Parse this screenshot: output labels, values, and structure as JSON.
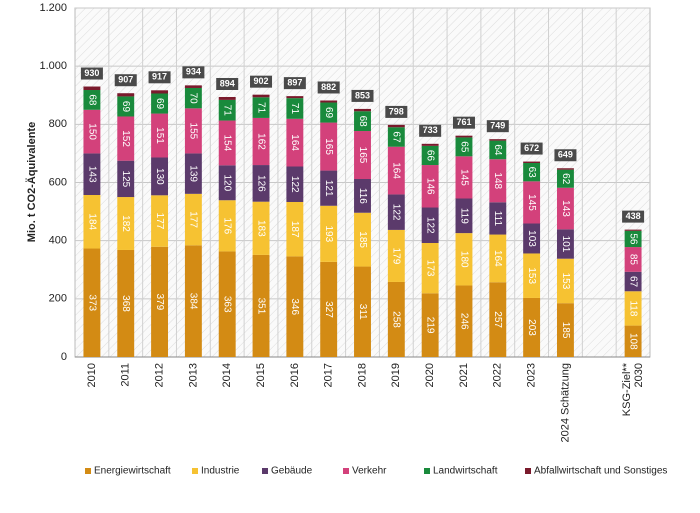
{
  "chart_data": {
    "type": "stacked-bar",
    "y_axis_label": "Mio. t CO2-Äquivalente",
    "categories": [
      "2010",
      "2011",
      "2012",
      "2013",
      "2014",
      "2015",
      "2016",
      "2017",
      "2018",
      "2019",
      "2020",
      "2021",
      "2022",
      "2023",
      "2024 Schätzung",
      null,
      "KSG-Ziel**\n2030"
    ],
    "series": [
      {
        "name": "Energiewirtschaft",
        "color": "#d38b14",
        "show_labels": true,
        "values": [
          373,
          368,
          379,
          384,
          363,
          351,
          346,
          327,
          311,
          258,
          219,
          246,
          257,
          203,
          185,
          null,
          108
        ]
      },
      {
        "name": "Industrie",
        "color": "#f6c232",
        "show_labels": true,
        "values": [
          184,
          182,
          177,
          177,
          176,
          183,
          187,
          193,
          185,
          179,
          173,
          180,
          164,
          153,
          153,
          null,
          118
        ]
      },
      {
        "name": "Gebäude",
        "color": "#5b3a6b",
        "show_labels": true,
        "values": [
          143,
          125,
          130,
          139,
          120,
          126,
          122,
          121,
          116,
          122,
          122,
          119,
          111,
          103,
          101,
          null,
          67
        ]
      },
      {
        "name": "Verkehr",
        "color": "#d3417b",
        "show_labels": true,
        "values": [
          150,
          152,
          151,
          155,
          154,
          162,
          164,
          165,
          165,
          164,
          146,
          145,
          148,
          145,
          143,
          null,
          85
        ]
      },
      {
        "name": "Landwirtschaft",
        "color": "#198a3c",
        "show_labels": true,
        "values": [
          68,
          69,
          69,
          70,
          71,
          71,
          71,
          69,
          68,
          67,
          66,
          65,
          64,
          63,
          62,
          null,
          56
        ]
      },
      {
        "name": "Abfallwirtschaft und Sonstiges",
        "color": "#7a1a2c",
        "show_labels": false,
        "values": [
          12,
          11,
          11,
          9,
          10,
          9,
          7,
          7,
          8,
          8,
          7,
          6,
          5,
          5,
          5,
          null,
          4
        ]
      }
    ],
    "totals": [
      930,
      907,
      917,
      934,
      894,
      902,
      897,
      882,
      853,
      798,
      733,
      761,
      749,
      672,
      649,
      null,
      438
    ],
    "ylim": [
      0,
      1200
    ],
    "yticks": [
      0,
      200,
      400,
      600,
      800,
      {
        "value": 1000,
        "label": "1.000"
      },
      {
        "value": 1200,
        "label": "1.200"
      }
    ],
    "grid": true
  }
}
